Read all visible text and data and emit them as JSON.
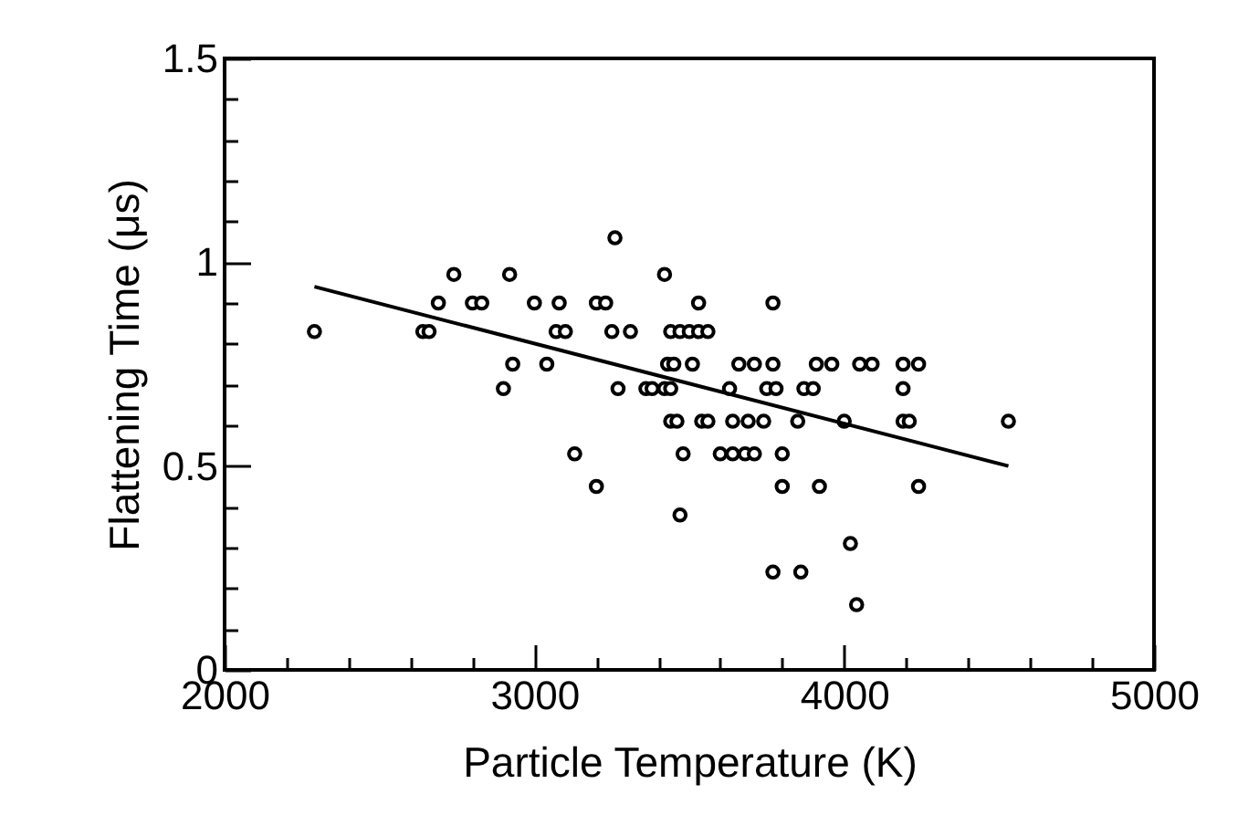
{
  "chart_data": {
    "type": "scatter",
    "xlabel": "Particle Temperature (K)",
    "ylabel": "Flattening Time (μs)",
    "xlim": [
      2000,
      5000
    ],
    "ylim": [
      0,
      1.5
    ],
    "xticks": [
      2000,
      {
        "value": 2200,
        "label": null
      },
      {
        "value": 2400,
        "label": null
      },
      {
        "value": 2600,
        "label": null
      },
      {
        "value": 2800,
        "label": null
      },
      3000,
      {
        "value": 3200,
        "label": null
      },
      {
        "value": 3400,
        "label": null
      },
      {
        "value": 3600,
        "label": null
      },
      {
        "value": 3800,
        "label": null
      },
      4000,
      {
        "value": 4200,
        "label": null
      },
      {
        "value": 4400,
        "label": null
      },
      {
        "value": 4600,
        "label": null
      },
      {
        "value": 4800,
        "label": null
      },
      5000
    ],
    "yticks": [
      0,
      {
        "value": 0.1,
        "label": null
      },
      {
        "value": 0.2,
        "label": null
      },
      {
        "value": 0.3,
        "label": null
      },
      {
        "value": 0.4,
        "label": null
      },
      0.5,
      {
        "value": 0.6,
        "label": null
      },
      {
        "value": 0.7,
        "label": null
      },
      {
        "value": 0.8,
        "label": null
      },
      {
        "value": 0.9,
        "label": null
      },
      1,
      {
        "value": 1.1,
        "label": null
      },
      {
        "value": 1.2,
        "label": null
      },
      {
        "value": 1.3,
        "label": null
      },
      {
        "value": 1.4,
        "label": null
      },
      1.5
    ],
    "grid": false,
    "series": [
      {
        "marker": "circle",
        "color": "#000000",
        "x": [
          2290,
          2640,
          2660,
          2690,
          2740,
          2800,
          2830,
          2900,
          2920,
          2930,
          3000,
          3040,
          3080,
          3070,
          3100,
          3130,
          3200,
          3200,
          3230,
          3260,
          3250,
          3310,
          3270,
          3360,
          3380,
          3420,
          3440,
          3470,
          3500,
          3530,
          3560,
          3530,
          3430,
          3450,
          3510,
          3420,
          3440,
          3440,
          3460,
          3540,
          3560,
          3480,
          3470,
          3770,
          3660,
          3710,
          3770,
          3910,
          3960,
          4050,
          4090,
          4190,
          4240,
          3630,
          3750,
          3780,
          3870,
          3900,
          4190,
          3640,
          3690,
          3740,
          3850,
          4000,
          4190,
          4210,
          4530,
          3600,
          3640,
          3680,
          3710,
          3800,
          3800,
          3920,
          4240,
          4020,
          3770,
          3860,
          4040
        ],
        "values": [
          0.83,
          0.83,
          0.83,
          0.9,
          0.97,
          0.9,
          0.9,
          0.69,
          0.97,
          0.75,
          0.9,
          0.75,
          0.9,
          0.83,
          0.83,
          0.53,
          0.45,
          0.9,
          0.9,
          1.06,
          0.83,
          0.83,
          0.69,
          0.69,
          0.69,
          0.97,
          0.83,
          0.83,
          0.83,
          0.83,
          0.83,
          0.9,
          0.75,
          0.75,
          0.75,
          0.69,
          0.69,
          0.61,
          0.61,
          0.61,
          0.61,
          0.53,
          0.38,
          0.9,
          0.75,
          0.75,
          0.75,
          0.75,
          0.75,
          0.75,
          0.75,
          0.75,
          0.75,
          0.69,
          0.69,
          0.69,
          0.69,
          0.69,
          0.69,
          0.61,
          0.61,
          0.61,
          0.61,
          0.61,
          0.61,
          0.61,
          0.61,
          0.53,
          0.53,
          0.53,
          0.53,
          0.53,
          0.45,
          0.45,
          0.45,
          0.31,
          0.24,
          0.24,
          0.16
        ]
      },
      {
        "type": "line",
        "line_style": "solid",
        "color": "#000000",
        "x": [
          2290,
          4530
        ],
        "values": [
          0.94,
          0.5
        ]
      }
    ]
  }
}
